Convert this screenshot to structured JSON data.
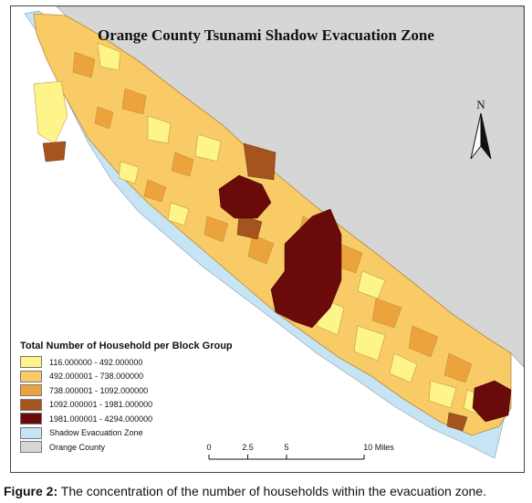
{
  "map": {
    "title": "Orange County Tsunami Shadow Evacuation Zone",
    "north_label": "N",
    "legend": {
      "title": "Total Number of Household per Block Group",
      "items": [
        {
          "label": "116.000000 - 492.000000",
          "color": "#fdf48a"
        },
        {
          "label": "492.000001 - 738.000000",
          "color": "#f9cb66"
        },
        {
          "label": "738.000001 - 1092.000000",
          "color": "#eda33c"
        },
        {
          "label": "1092.000001 - 1981.000000",
          "color": "#a4541c"
        },
        {
          "label": "1981.000001 - 4294.000000",
          "color": "#6b0a0a"
        },
        {
          "label": "Shadow Evacuation Zone",
          "color": "#c7e4f4"
        },
        {
          "label": "Orange County",
          "color": "#d6d6d6"
        }
      ]
    },
    "scale": {
      "ticks": [
        "0",
        "2.5",
        "5",
        "10 Miles"
      ],
      "tick_values": [
        0,
        2.5,
        5,
        10
      ]
    },
    "colors": {
      "land": "#d6d6d6",
      "water": "#ffffff",
      "zone": "#c7e4f4",
      "outline": "#8a6a2a"
    }
  },
  "caption": {
    "label": "Figure 2:",
    "text": " The concentration of the number of households within the evacuation zone."
  }
}
